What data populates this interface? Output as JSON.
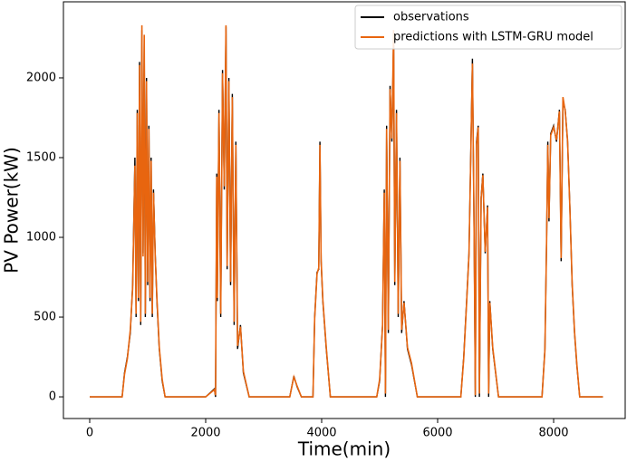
{
  "chart_data": {
    "type": "line",
    "x_label": "Time(min)",
    "y_label": "PV Power(kW)",
    "legend": "upper right",
    "xlim": [
      -453,
      9234
    ],
    "ylim": [
      -136,
      2477
    ],
    "xticks": [
      0,
      2000,
      4000,
      6000,
      8000
    ],
    "yticks": [
      0,
      500,
      1000,
      1500,
      2000
    ],
    "x": [
      0,
      560,
      600,
      650,
      700,
      740,
      780,
      800,
      820,
      840,
      860,
      880,
      900,
      920,
      940,
      960,
      980,
      1000,
      1020,
      1040,
      1060,
      1080,
      1100,
      1130,
      1160,
      1200,
      1250,
      1300,
      2000,
      2150,
      2170,
      2190,
      2200,
      2230,
      2260,
      2290,
      2320,
      2350,
      2370,
      2400,
      2430,
      2460,
      2490,
      2520,
      2550,
      2600,
      2650,
      2750,
      3450,
      3520,
      3580,
      3650,
      3850,
      3880,
      3920,
      3950,
      3970,
      3990,
      4020,
      4080,
      4150,
      4950,
      5000,
      5050,
      5080,
      5100,
      5120,
      5150,
      5180,
      5210,
      5240,
      5260,
      5290,
      5320,
      5350,
      5380,
      5420,
      5480,
      5550,
      5650,
      6400,
      6450,
      6500,
      6540,
      6570,
      6600,
      6630,
      6650,
      6670,
      6700,
      6720,
      6750,
      6780,
      6820,
      6860,
      6880,
      6900,
      6950,
      7050,
      7800,
      7850,
      7880,
      7900,
      7920,
      7950,
      8000,
      8050,
      8100,
      8130,
      8160,
      8200,
      8240,
      8280,
      8320,
      8360,
      8400,
      8450,
      8850
    ],
    "series": [
      {
        "name": "observations",
        "color": "#000000",
        "values": [
          0,
          0,
          150,
          250,
          400,
          700,
          1500,
          500,
          1800,
          600,
          2100,
          450,
          2300,
          900,
          2250,
          500,
          2000,
          700,
          1700,
          600,
          1500,
          500,
          1300,
          900,
          600,
          300,
          100,
          0,
          0,
          50,
          0,
          1400,
          600,
          1800,
          500,
          2050,
          1300,
          2320,
          800,
          2000,
          700,
          1900,
          450,
          1600,
          300,
          450,
          150,
          0,
          0,
          130,
          60,
          0,
          0,
          500,
          780,
          800,
          1600,
          850,
          600,
          300,
          0,
          0,
          100,
          450,
          1300,
          0,
          1700,
          400,
          1950,
          1600,
          2250,
          700,
          1800,
          500,
          1500,
          400,
          600,
          300,
          200,
          0,
          0,
          250,
          600,
          900,
          1500,
          2120,
          1000,
          0,
          1600,
          1700,
          0,
          1250,
          1400,
          900,
          1200,
          0,
          600,
          300,
          0,
          0,
          300,
          1000,
          1600,
          1100,
          1650,
          1700,
          1600,
          1800,
          850,
          1850,
          1800,
          1600,
          1200,
          700,
          400,
          200,
          0,
          0
        ]
      },
      {
        "name": "predictions with LSTM-GRU model",
        "color": "#e8650f",
        "values": [
          0,
          0,
          140,
          240,
          420,
          680,
          1450,
          520,
          1780,
          620,
          2080,
          470,
          2330,
          880,
          2270,
          520,
          1980,
          720,
          1680,
          620,
          1480,
          520,
          1280,
          880,
          620,
          310,
          110,
          0,
          0,
          45,
          10,
          1380,
          620,
          1780,
          520,
          2030,
          1320,
          2330,
          820,
          1980,
          720,
          1880,
          470,
          1580,
          320,
          440,
          160,
          0,
          0,
          125,
          65,
          0,
          0,
          490,
          770,
          810,
          1580,
          860,
          610,
          310,
          0,
          0,
          110,
          440,
          1280,
          20,
          1680,
          420,
          1930,
          1620,
          2300,
          720,
          1780,
          520,
          1480,
          420,
          590,
          310,
          210,
          0,
          0,
          240,
          590,
          890,
          1480,
          2090,
          1020,
          10,
          1580,
          1690,
          20,
          1240,
          1390,
          910,
          1190,
          20,
          590,
          310,
          0,
          0,
          290,
          990,
          1580,
          1120,
          1640,
          1690,
          1610,
          1790,
          870,
          1880,
          1790,
          1610,
          1190,
          710,
          410,
          210,
          0,
          0
        ]
      }
    ]
  }
}
